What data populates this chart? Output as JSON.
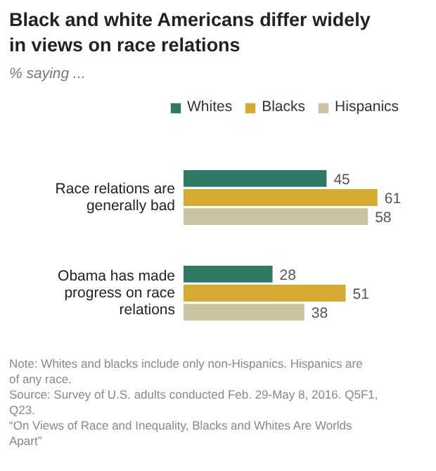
{
  "chart_data": {
    "type": "bar",
    "orientation": "horizontal",
    "title": "Black and white Americans differ widely in views on race relations",
    "subtitle": "% saying ...",
    "categories": [
      "Race relations are generally bad",
      "Obama has made progress on race relations"
    ],
    "series": [
      {
        "name": "Whites",
        "color": "#2f7a66",
        "values": [
          45,
          28
        ]
      },
      {
        "name": "Blacks",
        "color": "#d5a932",
        "values": [
          61,
          51
        ]
      },
      {
        "name": "Hispanics",
        "color": "#cbc2a2",
        "values": [
          58,
          38
        ]
      }
    ],
    "data_labels": true,
    "legend": "top",
    "grid": false,
    "annotations": [
      "Note: Whites and blacks include only non-Hispanics. Hispanics are of any race.",
      "Source: Survey of U.S. adults conducted Feb. 29-May 8, 2016. Q5F1, Q23.",
      "“On Views of Race and Inequality, Blacks and Whites Are Worlds Apart”"
    ]
  }
}
